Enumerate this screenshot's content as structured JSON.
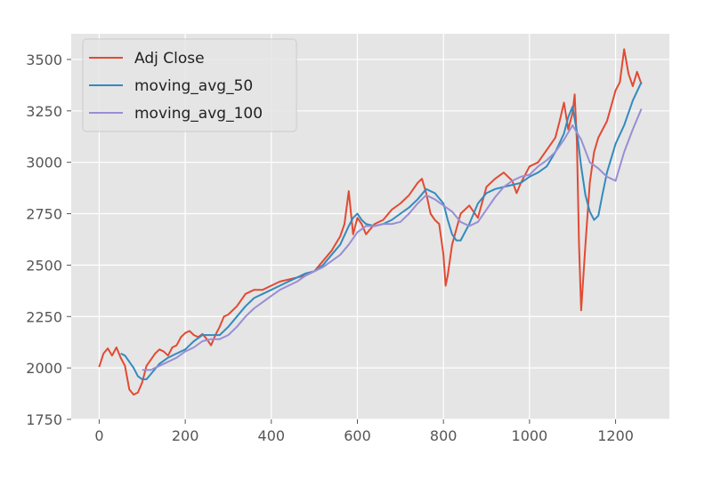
{
  "chart_data": {
    "type": "line",
    "title": "",
    "xlabel": "",
    "ylabel": "",
    "xlim": [
      -65,
      1325
    ],
    "ylim": [
      1750,
      3625
    ],
    "xticks": [
      0,
      200,
      400,
      600,
      800,
      1000,
      1200
    ],
    "yticks": [
      1750,
      2000,
      2250,
      2500,
      2750,
      3000,
      3250,
      3500
    ],
    "grid": true,
    "legend_position": "upper left",
    "background": "#e5e5e5",
    "series": [
      {
        "name": "Adj Close",
        "color": "#e24a33",
        "x": [
          0,
          10,
          20,
          30,
          40,
          50,
          60,
          70,
          80,
          90,
          100,
          110,
          120,
          130,
          140,
          150,
          160,
          170,
          180,
          190,
          200,
          210,
          220,
          230,
          240,
          250,
          260,
          270,
          280,
          290,
          300,
          320,
          340,
          360,
          380,
          400,
          420,
          440,
          460,
          480,
          500,
          520,
          540,
          560,
          570,
          580,
          590,
          600,
          610,
          620,
          640,
          660,
          680,
          700,
          720,
          740,
          750,
          760,
          770,
          780,
          790,
          800,
          805,
          810,
          820,
          840,
          860,
          880,
          900,
          920,
          940,
          960,
          970,
          980,
          1000,
          1020,
          1040,
          1060,
          1070,
          1080,
          1090,
          1100,
          1105,
          1110,
          1115,
          1120,
          1130,
          1140,
          1150,
          1160,
          1180,
          1200,
          1210,
          1220,
          1230,
          1240,
          1250,
          1260
        ],
        "values": [
          2005,
          2070,
          2095,
          2060,
          2100,
          2050,
          2010,
          1895,
          1870,
          1880,
          1930,
          2010,
          2040,
          2070,
          2090,
          2080,
          2060,
          2100,
          2110,
          2150,
          2170,
          2180,
          2160,
          2150,
          2165,
          2140,
          2110,
          2160,
          2200,
          2250,
          2260,
          2300,
          2360,
          2380,
          2380,
          2400,
          2420,
          2430,
          2440,
          2450,
          2470,
          2520,
          2570,
          2640,
          2700,
          2860,
          2650,
          2730,
          2700,
          2650,
          2700,
          2720,
          2770,
          2800,
          2840,
          2900,
          2920,
          2850,
          2750,
          2720,
          2700,
          2550,
          2400,
          2450,
          2600,
          2750,
          2790,
          2730,
          2880,
          2920,
          2950,
          2910,
          2850,
          2900,
          2980,
          3000,
          3060,
          3120,
          3200,
          3290,
          3160,
          3240,
          3330,
          3100,
          2600,
          2280,
          2600,
          2900,
          3050,
          3120,
          3200,
          3350,
          3390,
          3550,
          3430,
          3370,
          3440,
          3380
        ]
      },
      {
        "name": "moving_avg_50",
        "color": "#348abd",
        "x": [
          50,
          60,
          70,
          80,
          90,
          100,
          110,
          120,
          140,
          160,
          180,
          200,
          220,
          240,
          260,
          280,
          300,
          320,
          340,
          360,
          380,
          400,
          420,
          440,
          460,
          480,
          500,
          520,
          540,
          560,
          580,
          590,
          600,
          610,
          620,
          640,
          660,
          680,
          700,
          720,
          740,
          760,
          780,
          800,
          810,
          820,
          830,
          840,
          860,
          880,
          900,
          920,
          940,
          960,
          980,
          1000,
          1020,
          1040,
          1060,
          1080,
          1090,
          1100,
          1110,
          1120,
          1130,
          1140,
          1150,
          1160,
          1170,
          1180,
          1200,
          1220,
          1240,
          1260
        ],
        "values": [
          2070,
          2060,
          2030,
          2000,
          1960,
          1945,
          1945,
          1970,
          2020,
          2050,
          2070,
          2090,
          2130,
          2160,
          2160,
          2160,
          2200,
          2250,
          2300,
          2340,
          2360,
          2380,
          2400,
          2420,
          2440,
          2460,
          2470,
          2500,
          2550,
          2600,
          2690,
          2730,
          2750,
          2720,
          2700,
          2690,
          2700,
          2720,
          2750,
          2780,
          2820,
          2870,
          2850,
          2800,
          2720,
          2650,
          2620,
          2620,
          2700,
          2800,
          2850,
          2870,
          2880,
          2890,
          2900,
          2930,
          2950,
          2980,
          3050,
          3140,
          3220,
          3270,
          3150,
          2980,
          2840,
          2760,
          2720,
          2740,
          2850,
          2950,
          3090,
          3180,
          3300,
          3390
        ]
      },
      {
        "name": "moving_avg_100",
        "color": "#988ed5",
        "x": [
          100,
          120,
          140,
          160,
          180,
          200,
          220,
          240,
          260,
          280,
          300,
          320,
          340,
          360,
          380,
          400,
          420,
          440,
          460,
          480,
          500,
          520,
          540,
          560,
          580,
          600,
          620,
          640,
          660,
          680,
          700,
          720,
          740,
          760,
          780,
          800,
          820,
          840,
          860,
          880,
          900,
          920,
          940,
          960,
          980,
          1000,
          1020,
          1040,
          1060,
          1080,
          1100,
          1120,
          1140,
          1160,
          1180,
          1200,
          1220,
          1240,
          1260
        ],
        "values": [
          1990,
          1990,
          2010,
          2030,
          2050,
          2080,
          2100,
          2130,
          2140,
          2140,
          2160,
          2200,
          2250,
          2290,
          2320,
          2350,
          2380,
          2400,
          2420,
          2450,
          2470,
          2490,
          2520,
          2550,
          2600,
          2660,
          2690,
          2690,
          2700,
          2700,
          2710,
          2750,
          2800,
          2840,
          2820,
          2790,
          2760,
          2710,
          2690,
          2710,
          2770,
          2830,
          2880,
          2910,
          2930,
          2940,
          2980,
          3010,
          3050,
          3110,
          3180,
          3110,
          3000,
          2970,
          2930,
          2910,
          3050,
          3160,
          3260
        ]
      }
    ]
  }
}
